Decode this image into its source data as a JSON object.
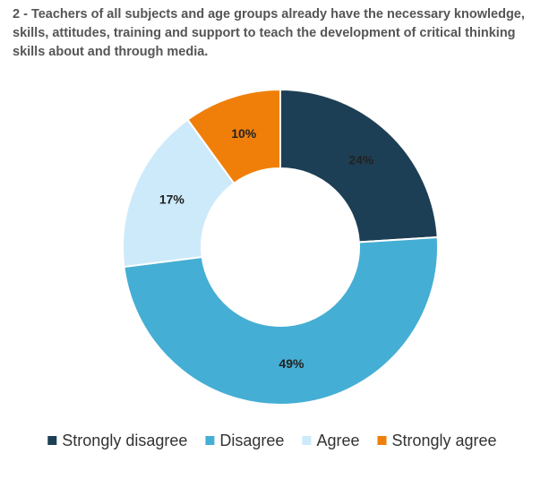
{
  "chart_data": {
    "type": "pie",
    "title": "2 - Teachers of all subjects and age groups already have the necessary knowledge, skills, attitudes, training and support to teach the development of critical thinking skills about and through media.",
    "categories": [
      "Strongly disagree",
      "Disagree",
      "Agree",
      "Strongly agree"
    ],
    "values": [
      24,
      49,
      17,
      10
    ],
    "value_labels": [
      "24%",
      "49%",
      "17%",
      "10%"
    ],
    "colors": [
      "#1d3f55",
      "#45aed4",
      "#cdeafa",
      "#f07f09"
    ],
    "legend": "bottom"
  }
}
